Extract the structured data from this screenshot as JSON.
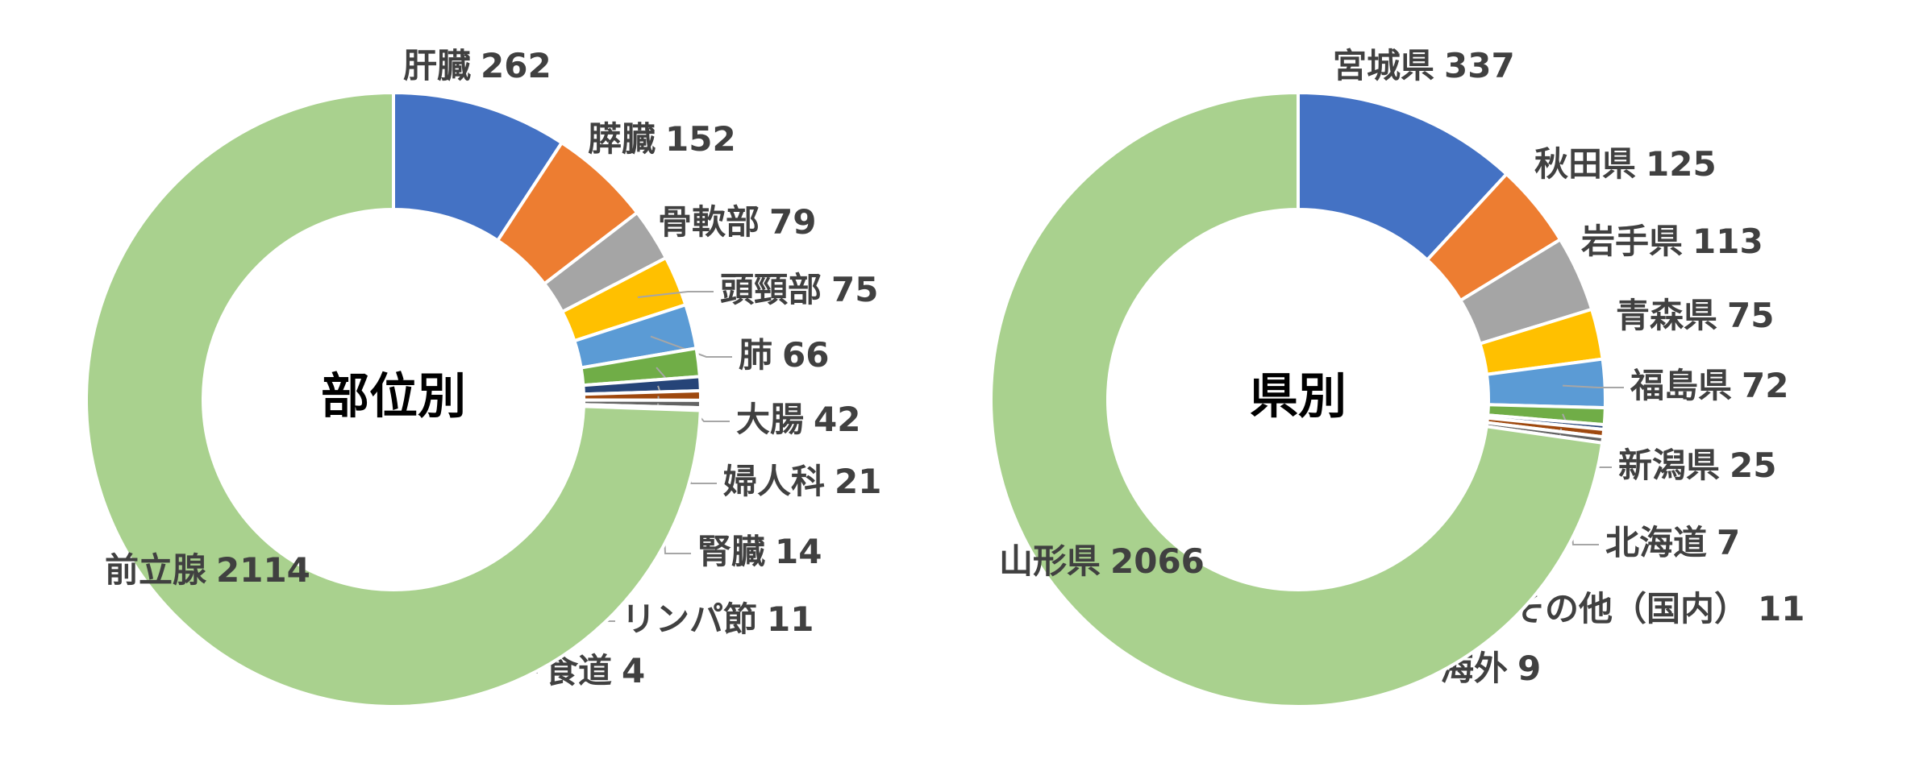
{
  "chart_data": [
    {
      "type": "donut",
      "title": "部位別",
      "categories": [
        "肝臓",
        "膵臓",
        "骨軟部",
        "頭頸部",
        "肺",
        "大腸",
        "婦人科",
        "腎臓",
        "リンパ節",
        "食道",
        "前立腺"
      ],
      "values": [
        262,
        152,
        79,
        75,
        66,
        42,
        21,
        14,
        11,
        4,
        2114
      ],
      "colors": [
        "#4472c4",
        "#ed7d31",
        "#a5a5a5",
        "#ffc000",
        "#5b9bd5",
        "#70ad47",
        "#264478",
        "#9e480e",
        "#636363",
        "#997300",
        "#a9d18e"
      ]
    },
    {
      "type": "donut",
      "title": "県別",
      "categories": [
        "宮城県",
        "秋田県",
        "岩手県",
        "青森県",
        "福島県",
        "新潟県",
        "北海道",
        "その他（国内）",
        "海外",
        "山形県"
      ],
      "values": [
        337,
        125,
        113,
        75,
        72,
        25,
        7,
        11,
        9,
        2066
      ],
      "colors": [
        "#4472c4",
        "#ed7d31",
        "#a5a5a5",
        "#ffc000",
        "#5b9bd5",
        "#70ad47",
        "#264478",
        "#9e480e",
        "#636363",
        "#a9d18e"
      ]
    }
  ]
}
